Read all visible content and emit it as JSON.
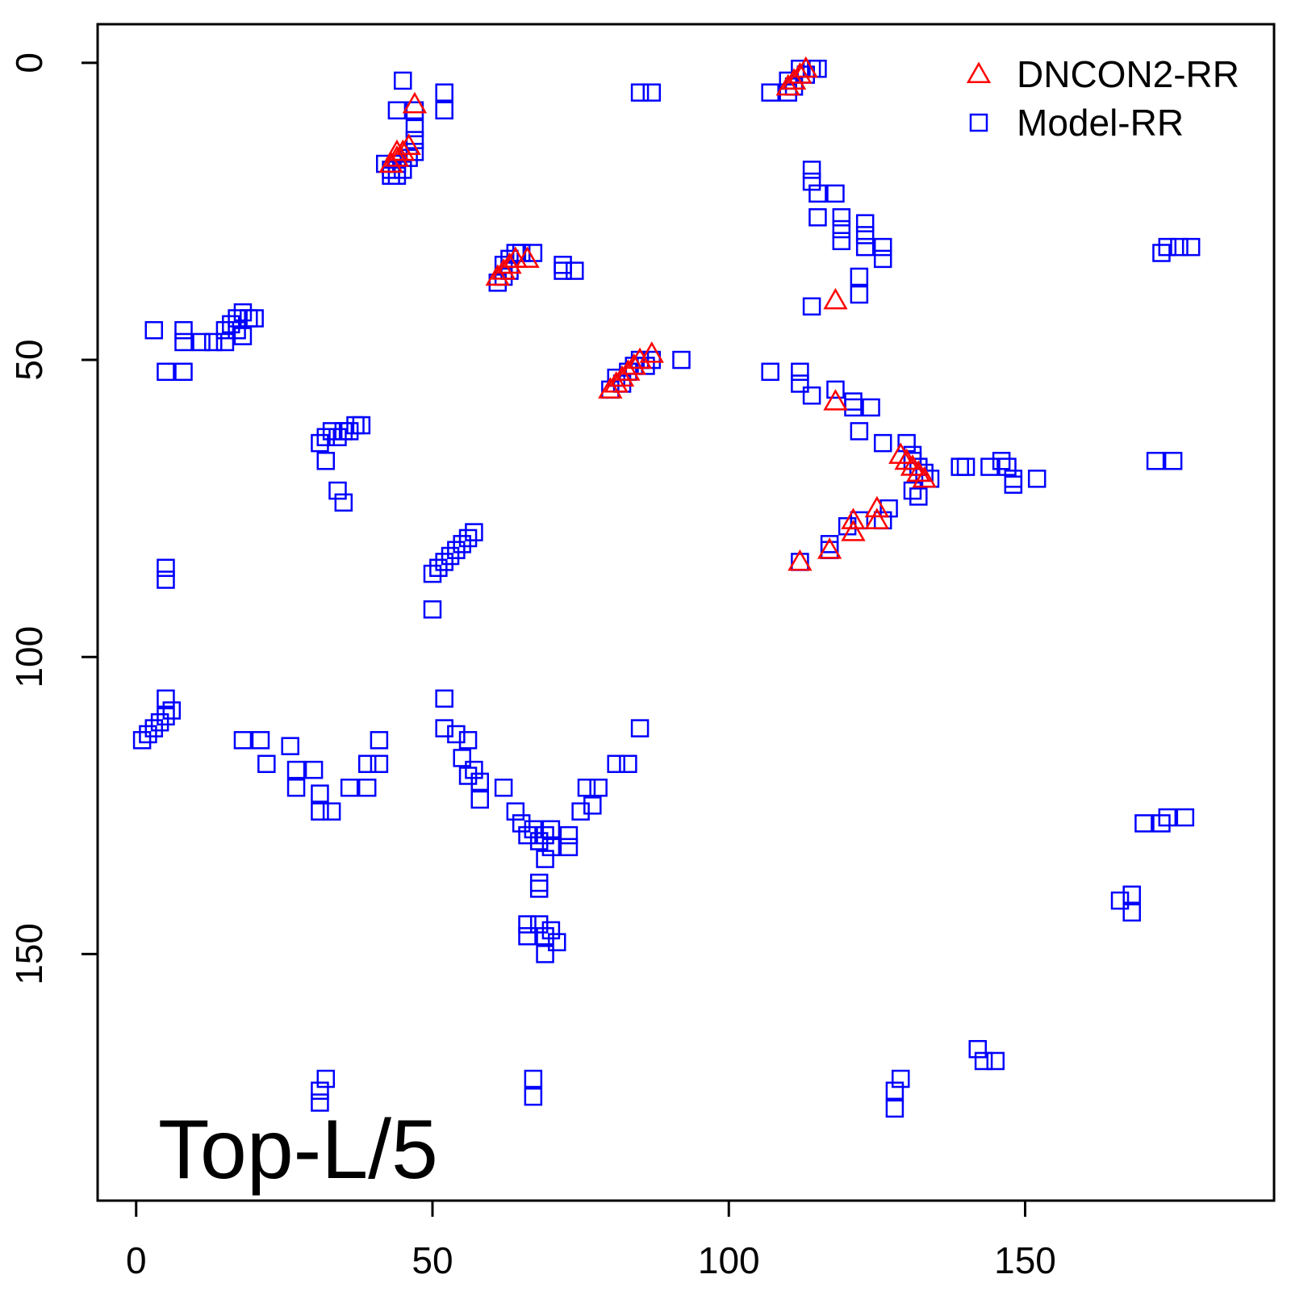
{
  "chart_data": {
    "type": "scatter",
    "title": "",
    "xlabel": "",
    "ylabel": "",
    "xlim": [
      -6.5,
      192
    ],
    "ylim": [
      -6.5,
      191.5
    ],
    "y_reversed": true,
    "x_ticks": [
      0,
      50,
      100,
      150
    ],
    "y_ticks": [
      0,
      50,
      100,
      150
    ],
    "annotation": "Top-L/5",
    "legend": {
      "position": "top-right"
    },
    "series": [
      {
        "name": "DNCON2-RR",
        "marker": "triangle",
        "color": "#ff0000",
        "points": [
          [
            43,
            17
          ],
          [
            44,
            16
          ],
          [
            44,
            15
          ],
          [
            45,
            15
          ],
          [
            46,
            14
          ],
          [
            47,
            7
          ],
          [
            61,
            36
          ],
          [
            62,
            35
          ],
          [
            63,
            34
          ],
          [
            64,
            33
          ],
          [
            66,
            33
          ],
          [
            80,
            55
          ],
          [
            81,
            54
          ],
          [
            82,
            53
          ],
          [
            83,
            52
          ],
          [
            84,
            51
          ],
          [
            85,
            50
          ],
          [
            87,
            49
          ],
          [
            110,
            4
          ],
          [
            111,
            3
          ],
          [
            112,
            2
          ],
          [
            113,
            1
          ],
          [
            118,
            40
          ],
          [
            118,
            57
          ],
          [
            112,
            84
          ],
          [
            117,
            82
          ],
          [
            121,
            79
          ],
          [
            121,
            77
          ],
          [
            125,
            77
          ],
          [
            125,
            75
          ],
          [
            129,
            66
          ],
          [
            130,
            67
          ],
          [
            131,
            68
          ],
          [
            132,
            69
          ],
          [
            133,
            70
          ]
        ]
      },
      {
        "name": "Model-RR",
        "marker": "square",
        "color": "#0000ff",
        "points": [
          [
            45,
            3
          ],
          [
            44,
            8
          ],
          [
            47,
            8
          ],
          [
            52,
            5
          ],
          [
            52,
            8
          ],
          [
            47,
            11
          ],
          [
            47,
            13
          ],
          [
            47,
            15
          ],
          [
            42,
            17
          ],
          [
            43,
            18
          ],
          [
            44,
            17
          ],
          [
            43,
            19
          ],
          [
            44,
            19
          ],
          [
            45,
            18
          ],
          [
            46,
            16
          ],
          [
            85,
            5
          ],
          [
            87,
            5
          ],
          [
            107,
            5
          ],
          [
            110,
            5
          ],
          [
            110,
            3
          ],
          [
            111,
            4
          ],
          [
            112,
            1
          ],
          [
            113,
            2
          ],
          [
            114,
            1
          ],
          [
            115,
            1
          ],
          [
            114,
            18
          ],
          [
            114,
            20
          ],
          [
            115,
            22
          ],
          [
            118,
            22
          ],
          [
            115,
            26
          ],
          [
            119,
            26
          ],
          [
            119,
            28
          ],
          [
            119,
            30
          ],
          [
            123,
            27
          ],
          [
            123,
            29
          ],
          [
            123,
            31
          ],
          [
            126,
            31
          ],
          [
            126,
            33
          ],
          [
            122,
            36
          ],
          [
            122,
            39
          ],
          [
            114,
            41
          ],
          [
            61,
            37
          ],
          [
            62,
            36
          ],
          [
            62,
            34
          ],
          [
            63,
            35
          ],
          [
            63,
            33
          ],
          [
            64,
            32
          ],
          [
            65,
            32
          ],
          [
            67,
            32
          ],
          [
            72,
            34
          ],
          [
            72,
            35
          ],
          [
            74,
            35
          ],
          [
            173,
            32
          ],
          [
            174,
            31
          ],
          [
            176,
            31
          ],
          [
            178,
            31
          ],
          [
            3,
            45
          ],
          [
            8,
            45
          ],
          [
            8,
            47
          ],
          [
            11,
            47
          ],
          [
            13,
            47
          ],
          [
            15,
            47
          ],
          [
            15,
            45
          ],
          [
            16,
            44
          ],
          [
            17,
            43
          ],
          [
            18,
            42
          ],
          [
            19,
            43
          ],
          [
            20,
            43
          ],
          [
            17,
            45
          ],
          [
            18,
            46
          ],
          [
            5,
            52
          ],
          [
            8,
            52
          ],
          [
            80,
            55
          ],
          [
            81,
            53
          ],
          [
            82,
            54
          ],
          [
            83,
            52
          ],
          [
            84,
            51
          ],
          [
            85,
            50
          ],
          [
            86,
            51
          ],
          [
            87,
            50
          ],
          [
            92,
            50
          ],
          [
            107,
            52
          ],
          [
            112,
            52
          ],
          [
            112,
            54
          ],
          [
            114,
            56
          ],
          [
            118,
            55
          ],
          [
            121,
            57
          ],
          [
            124,
            58
          ],
          [
            121,
            58
          ],
          [
            122,
            62
          ],
          [
            126,
            64
          ],
          [
            130,
            64
          ],
          [
            131,
            66
          ],
          [
            131,
            67
          ],
          [
            132,
            68
          ],
          [
            133,
            69
          ],
          [
            134,
            70
          ],
          [
            139,
            68
          ],
          [
            140,
            68
          ],
          [
            144,
            68
          ],
          [
            146,
            67
          ],
          [
            147,
            68
          ],
          [
            148,
            70
          ],
          [
            152,
            70
          ],
          [
            148,
            71
          ],
          [
            131,
            72
          ],
          [
            132,
            73
          ],
          [
            127,
            75
          ],
          [
            122,
            77
          ],
          [
            120,
            78
          ],
          [
            126,
            77
          ],
          [
            117,
            81
          ],
          [
            112,
            84
          ],
          [
            117,
            82
          ],
          [
            31,
            64
          ],
          [
            32,
            63
          ],
          [
            33,
            62
          ],
          [
            34,
            63
          ],
          [
            35,
            62
          ],
          [
            36,
            62
          ],
          [
            37,
            61
          ],
          [
            38,
            61
          ],
          [
            32,
            67
          ],
          [
            34,
            72
          ],
          [
            35,
            74
          ],
          [
            5,
            85
          ],
          [
            5,
            87
          ],
          [
            50,
            86
          ],
          [
            51,
            85
          ],
          [
            52,
            84
          ],
          [
            53,
            83
          ],
          [
            54,
            82
          ],
          [
            55,
            81
          ],
          [
            56,
            80
          ],
          [
            57,
            79
          ],
          [
            50,
            92
          ],
          [
            1,
            114
          ],
          [
            2,
            113
          ],
          [
            3,
            112
          ],
          [
            4,
            111
          ],
          [
            5,
            110
          ],
          [
            6,
            109
          ],
          [
            5,
            107
          ],
          [
            18,
            114
          ],
          [
            21,
            114
          ],
          [
            22,
            118
          ],
          [
            26,
            115
          ],
          [
            27,
            119
          ],
          [
            27,
            122
          ],
          [
            30,
            119
          ],
          [
            31,
            123
          ],
          [
            31,
            126
          ],
          [
            33,
            126
          ],
          [
            36,
            122
          ],
          [
            39,
            122
          ],
          [
            39,
            118
          ],
          [
            41,
            118
          ],
          [
            41,
            114
          ],
          [
            52,
            107
          ],
          [
            52,
            112
          ],
          [
            54,
            113
          ],
          [
            56,
            114
          ],
          [
            55,
            117
          ],
          [
            56,
            120
          ],
          [
            57,
            119
          ],
          [
            58,
            121
          ],
          [
            58,
            124
          ],
          [
            62,
            122
          ],
          [
            64,
            126
          ],
          [
            65,
            128
          ],
          [
            66,
            130
          ],
          [
            67,
            129
          ],
          [
            68,
            131
          ],
          [
            69,
            130
          ],
          [
            69,
            134
          ],
          [
            70,
            129
          ],
          [
            70,
            132
          ],
          [
            73,
            132
          ],
          [
            73,
            130
          ],
          [
            75,
            126
          ],
          [
            76,
            122
          ],
          [
            77,
            125
          ],
          [
            78,
            122
          ],
          [
            81,
            118
          ],
          [
            83,
            118
          ],
          [
            85,
            112
          ],
          [
            68,
            138
          ],
          [
            68,
            139
          ],
          [
            66,
            145
          ],
          [
            66,
            147
          ],
          [
            68,
            145
          ],
          [
            69,
            147
          ],
          [
            70,
            146
          ],
          [
            71,
            148
          ],
          [
            69,
            150
          ],
          [
            67,
            171
          ],
          [
            67,
            174
          ],
          [
            31,
            173
          ],
          [
            31,
            175
          ],
          [
            32,
            171
          ],
          [
            128,
            173
          ],
          [
            128,
            176
          ],
          [
            129,
            171
          ],
          [
            142,
            166
          ],
          [
            143,
            168
          ],
          [
            145,
            168
          ],
          [
            170,
            128
          ],
          [
            173,
            128
          ],
          [
            174,
            127
          ],
          [
            177,
            127
          ],
          [
            172,
            67
          ],
          [
            175,
            67
          ],
          [
            166,
            141
          ],
          [
            168,
            140
          ],
          [
            168,
            143
          ]
        ]
      }
    ]
  }
}
